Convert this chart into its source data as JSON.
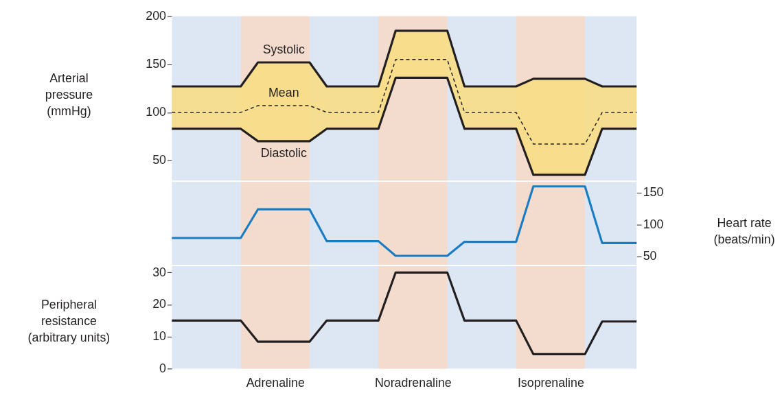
{
  "chart_data": [
    {
      "type": "line",
      "ylabel": "Arterial\npressure\n(mmHg)",
      "ylim": [
        29,
        200
      ],
      "yticks": [
        50,
        100,
        150,
        200
      ],
      "tick_labels": "y",
      "categories": [
        null,
        null,
        null,
        null,
        null,
        null,
        null,
        null,
        null,
        null,
        null,
        null,
        null,
        null,
        null,
        null,
        null,
        null,
        null,
        null,
        null,
        null,
        null,
        null,
        null,
        null,
        null,
        null
      ],
      "series": [
        {
          "name": "Systolic",
          "color": "#231f20",
          "values": [
            127,
            127,
            127,
            127,
            127,
            152,
            152,
            152,
            152,
            127,
            127,
            127,
            127,
            185,
            185,
            185,
            185,
            127,
            127,
            127,
            127,
            135,
            135,
            135,
            135,
            127,
            127,
            127
          ]
        },
        {
          "name": "Mean",
          "color": "#231f20",
          "line_style": "dashed",
          "values": [
            100,
            100,
            100,
            100,
            100,
            107,
            107,
            107,
            107,
            100,
            100,
            100,
            100,
            155,
            155,
            155,
            155,
            100,
            100,
            100,
            100,
            67,
            67,
            67,
            67,
            100,
            100,
            100
          ],
          "lower": [
            83,
            83,
            83,
            83,
            83,
            70,
            70,
            70,
            70,
            83,
            83,
            83,
            83,
            136,
            136,
            136,
            136,
            83,
            83,
            83,
            83,
            35,
            35,
            35,
            35,
            83,
            83,
            83
          ],
          "upper": [
            127,
            127,
            127,
            127,
            127,
            152,
            152,
            152,
            152,
            127,
            127,
            127,
            127,
            185,
            185,
            185,
            185,
            127,
            127,
            127,
            127,
            135,
            135,
            135,
            135,
            127,
            127,
            127
          ]
        },
        {
          "name": "Diastolic",
          "color": "#231f20",
          "values": [
            83,
            83,
            83,
            83,
            83,
            70,
            70,
            70,
            70,
            83,
            83,
            83,
            83,
            136,
            136,
            136,
            136,
            83,
            83,
            83,
            83,
            35,
            35,
            35,
            35,
            83,
            83,
            83
          ]
        }
      ]
    },
    {
      "type": "line",
      "ylabel": "Heart rate\n(beats/min)",
      "ylim": [
        37,
        167
      ],
      "yticks": [
        50,
        100,
        150
      ],
      "tick_labels": "y",
      "categories": [
        null,
        null,
        null,
        null,
        null,
        null,
        null,
        null,
        null,
        null,
        null,
        null,
        null,
        null,
        null,
        null,
        null,
        null,
        null,
        null,
        null,
        null,
        null,
        null,
        null,
        null,
        null,
        null
      ],
      "series": [
        {
          "color": "#1a7cc1",
          "values": [
            79,
            79,
            79,
            79,
            79,
            124,
            124,
            124,
            124,
            74,
            74,
            74,
            74,
            51,
            51,
            51,
            51,
            73,
            73,
            73,
            73,
            160,
            160,
            160,
            160,
            71,
            71,
            71
          ]
        }
      ]
    },
    {
      "type": "line",
      "ylabel": "Peripheral\nresistance\n(arbitrary units)",
      "ylim": [
        0,
        32
      ],
      "yticks": [
        0,
        10,
        20,
        30
      ],
      "categories": [
        null,
        null,
        null,
        null,
        null,
        null,
        "Adrenaline",
        null,
        null,
        null,
        null,
        null,
        null,
        null,
        "Noradrenaline",
        null,
        null,
        null,
        null,
        null,
        null,
        null,
        "Isoprenaline",
        null,
        null,
        null,
        null,
        null
      ],
      "series": [
        {
          "color": "#231f20",
          "values": [
            15,
            15,
            15,
            15,
            15,
            8.4,
            8.4,
            8.4,
            8.4,
            15,
            15,
            15,
            15,
            30,
            30,
            30,
            30,
            15,
            15,
            15,
            15,
            4.5,
            4.5,
            4.5,
            4.5,
            14.7,
            14.7,
            14.7
          ]
        }
      ]
    }
  ]
}
